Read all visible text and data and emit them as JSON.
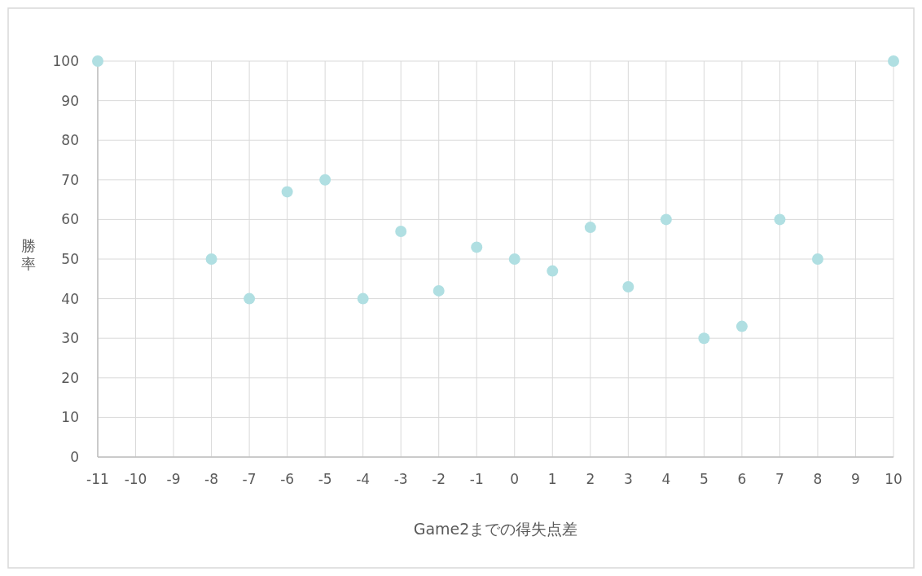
{
  "chart_data": {
    "type": "scatter",
    "xlabel": "Game2までの得失点差",
    "ylabel": "勝率",
    "x": [
      -11,
      -8,
      -7,
      -6,
      -5,
      -4,
      -3,
      -2,
      -1,
      0,
      1,
      2,
      3,
      4,
      5,
      6,
      7,
      8,
      10
    ],
    "values": [
      100,
      50,
      40,
      67,
      70,
      40,
      57,
      42,
      53,
      50,
      47,
      58,
      43,
      60,
      30,
      33,
      60,
      50,
      100
    ],
    "color": "#b0dfe2",
    "marker": "circle",
    "grid": true,
    "xlim": [
      -11,
      10
    ],
    "xticks": [
      -11,
      -10,
      -9,
      -8,
      -7,
      -6,
      -5,
      -4,
      -3,
      -2,
      -1,
      0,
      1,
      2,
      3,
      4,
      5,
      6,
      7,
      8,
      9,
      10
    ],
    "ylim": [
      0,
      100
    ],
    "yticks": [
      0,
      10,
      20,
      30,
      40,
      50,
      60,
      70,
      80,
      90,
      100
    ]
  }
}
